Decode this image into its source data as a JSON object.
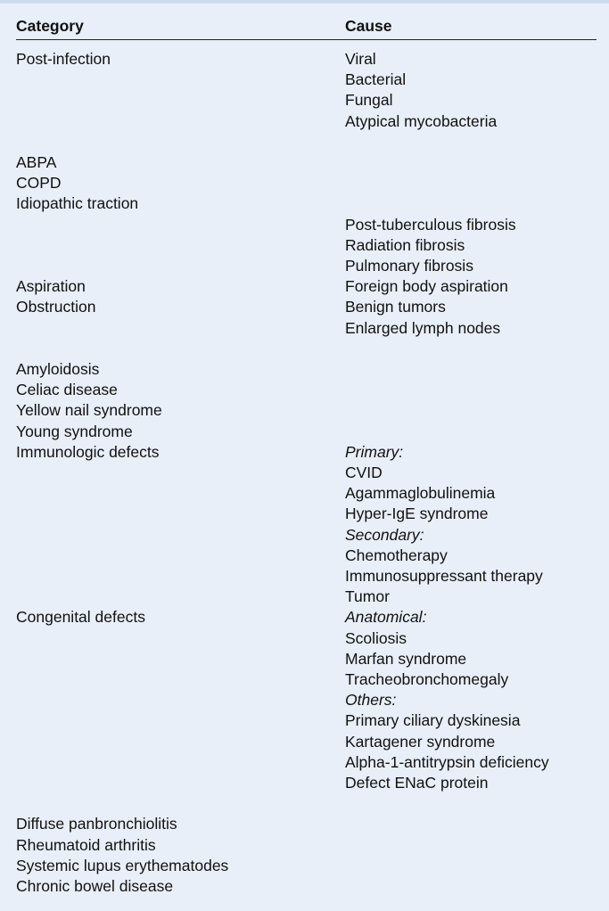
{
  "table": {
    "headers": {
      "category": "Category",
      "cause": "Cause"
    },
    "rows": [
      {
        "category": "Post-infection",
        "causes": [
          {
            "text": "Viral"
          },
          {
            "text": "Bacterial"
          },
          {
            "text": "Fungal"
          },
          {
            "text": "Atypical mycobacteria"
          }
        ],
        "gap_after": true
      },
      {
        "category": "ABPA",
        "causes": []
      },
      {
        "category": "COPD",
        "causes": []
      },
      {
        "category": "Idiopathic traction",
        "causes": [
          {
            "text": ""
          },
          {
            "text": "Post-tuberculous fibrosis"
          },
          {
            "text": "Radiation fibrosis"
          },
          {
            "text": "Pulmonary fibrosis"
          }
        ]
      },
      {
        "category": "Aspiration",
        "causes": [
          {
            "text": "Foreign body aspiration"
          }
        ]
      },
      {
        "category": "Obstruction",
        "causes": [
          {
            "text": "Benign tumors"
          },
          {
            "text": "Enlarged lymph nodes"
          }
        ],
        "gap_after": true
      },
      {
        "category": "Amyloidosis",
        "causes": []
      },
      {
        "category": "Celiac disease",
        "causes": []
      },
      {
        "category": "Yellow nail syndrome",
        "causes": []
      },
      {
        "category": "Young syndrome",
        "causes": []
      },
      {
        "category": "Immunologic defects",
        "causes": [
          {
            "text": "Primary:",
            "heading": true
          },
          {
            "text": "CVID"
          },
          {
            "text": "Agammaglobulinemia"
          },
          {
            "text": "Hyper-IgE syndrome"
          },
          {
            "text": "Secondary:",
            "heading": true
          },
          {
            "text": "Chemotherapy"
          },
          {
            "text": "Immunosuppressant therapy"
          },
          {
            "text": "Tumor"
          }
        ]
      },
      {
        "category": "Congenital defects",
        "causes": [
          {
            "text": "Anatomical:",
            "heading": true
          },
          {
            "text": "Scoliosis"
          },
          {
            "text": "Marfan syndrome"
          },
          {
            "text": "Tracheobronchomegaly"
          },
          {
            "text": "Others:",
            "heading": true
          },
          {
            "text": "Primary ciliary dyskinesia"
          },
          {
            "text": "Kartagener syndrome"
          },
          {
            "text": "Alpha-1-antitrypsin deficiency"
          },
          {
            "text": "Defect ENaC protein"
          }
        ],
        "gap_after": true
      },
      {
        "category": "Diffuse panbronchiolitis",
        "causes": []
      },
      {
        "category": "Rheumatoid arthritis",
        "causes": []
      },
      {
        "category": "Systemic lupus erythematodes",
        "causes": []
      },
      {
        "category": "Chronic bowel disease",
        "causes": []
      }
    ]
  }
}
